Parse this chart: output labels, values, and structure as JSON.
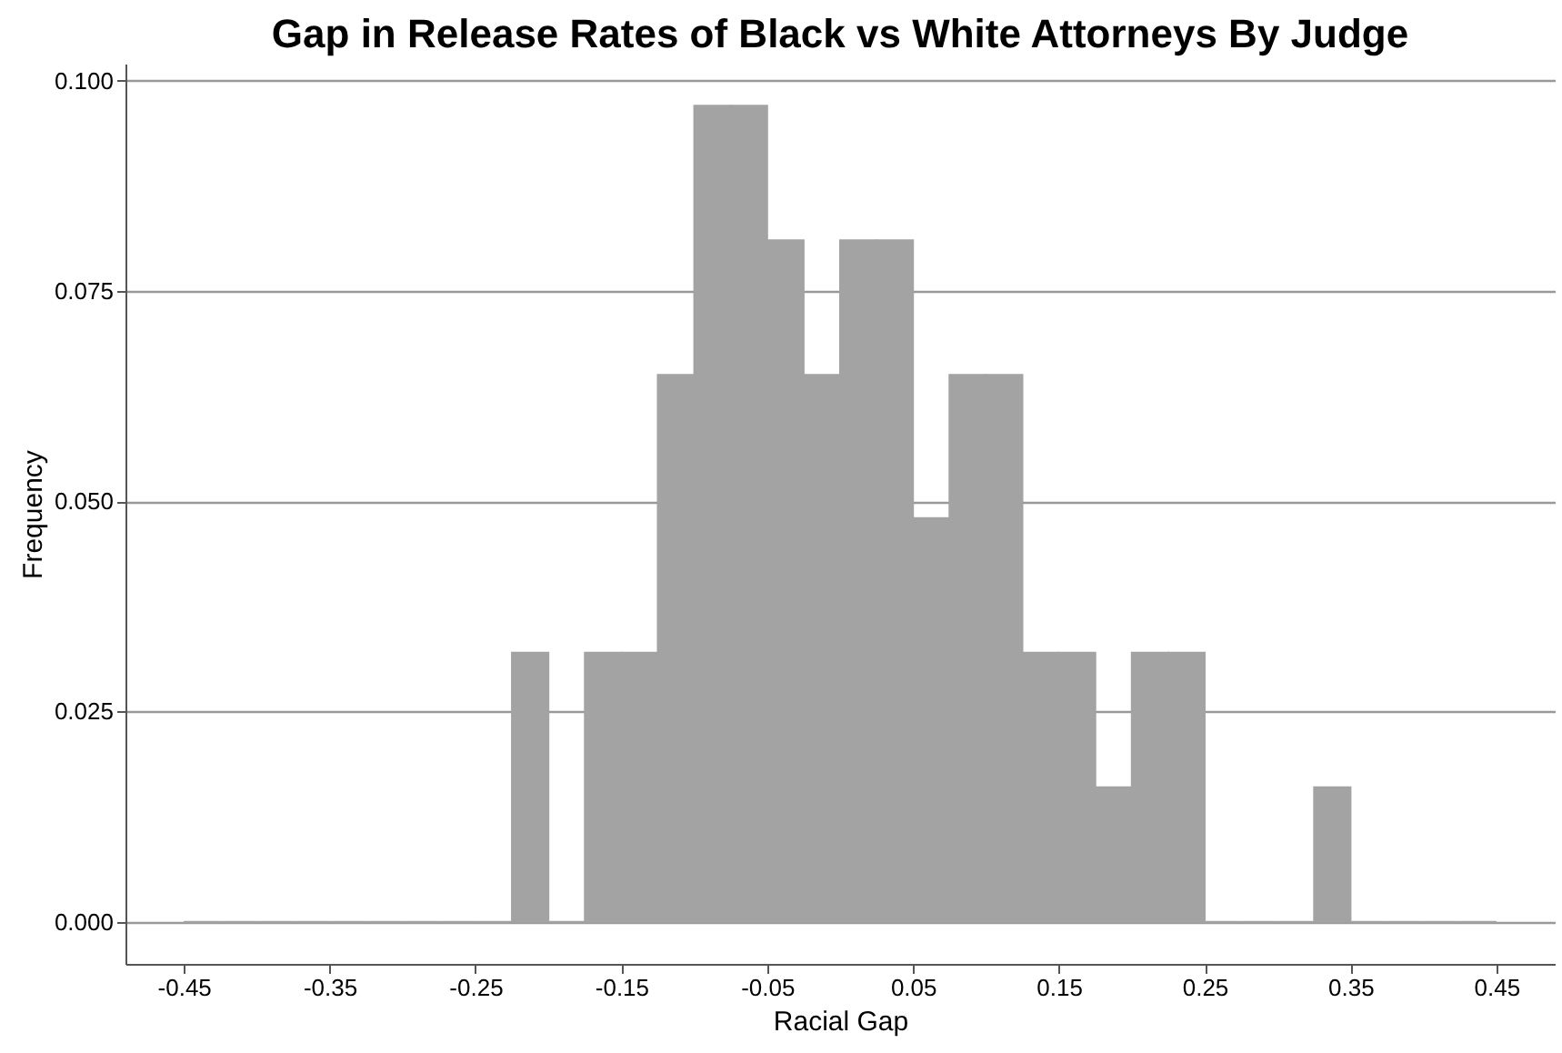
{
  "chart_data": {
    "type": "histogram",
    "title": "Gap in Release Rates of Black vs White Attorneys By Judge",
    "xlabel": "Racial Gap",
    "ylabel": "Frequency",
    "color": "#a3a3a3",
    "bins": [
      -0.45,
      -0.425,
      -0.4,
      -0.375,
      -0.35,
      -0.325,
      -0.3,
      -0.275,
      -0.25,
      -0.225,
      -0.2,
      -0.175,
      -0.15,
      -0.125,
      -0.1,
      -0.075,
      -0.05,
      -0.025,
      0,
      0.025,
      0.05,
      0.075,
      0.1,
      0.125,
      0.15,
      0.175,
      0.2,
      0.225,
      0.25,
      0.275,
      0.3,
      0.325,
      0.35,
      0.375,
      0.4,
      0.425,
      0.45
    ],
    "values": [
      0,
      0,
      0,
      0,
      0,
      0,
      0,
      0,
      0,
      0.032,
      0,
      0.032,
      0.032,
      0.065,
      0.097,
      0.097,
      0.081,
      0.065,
      0.081,
      0.081,
      0.048,
      0.065,
      0.065,
      0.032,
      0.032,
      0.016,
      0.032,
      0.032,
      0,
      0,
      0,
      0.016,
      0,
      0,
      0,
      0
    ],
    "xlim": [
      -0.49,
      0.49
    ],
    "xticks": [
      -0.45,
      -0.35,
      -0.25,
      -0.15,
      -0.05,
      0.05,
      0.15,
      0.25,
      0.35,
      0.45
    ],
    "ylim": [
      -0.005,
      0.102
    ],
    "yticks": [
      {
        "value": 0,
        "label": "0.000"
      },
      {
        "value": 0.025,
        "label": "0.025"
      },
      {
        "value": 0.05,
        "label": "0.050"
      },
      {
        "value": 0.075,
        "label": "0.075"
      },
      {
        "value": 0.1,
        "label": "0.100"
      }
    ],
    "grid": "y"
  }
}
